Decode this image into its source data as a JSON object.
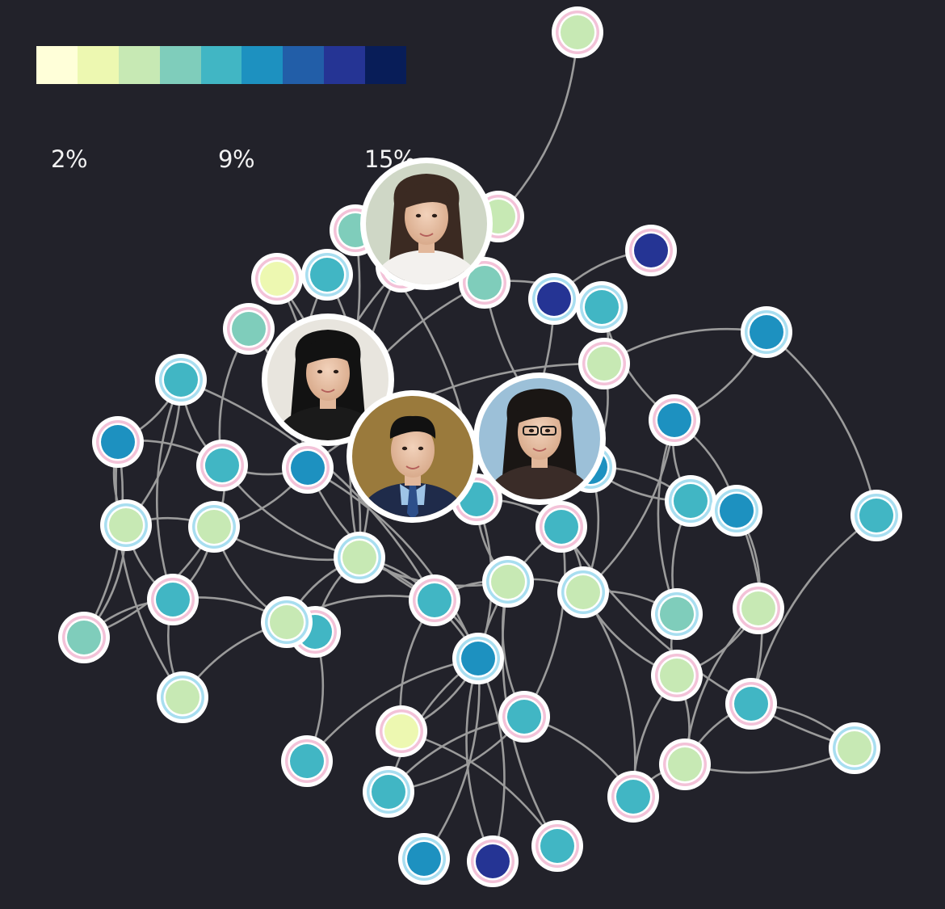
{
  "legend": {
    "colors": [
      "#ffffd9",
      "#edf8b1",
      "#c7e9b4",
      "#7fcdbb",
      "#41b6c4",
      "#1d91c0",
      "#225ea8",
      "#253494",
      "#081d58"
    ],
    "labels": [
      "2%",
      "9%",
      "15%"
    ]
  },
  "ring_colors": {
    "pink": "#f3c2d8",
    "blue": "#a8def0"
  },
  "edge_color": "#9b9b9b",
  "profiles": [
    {
      "name": "profile-woman-long-hair"
    },
    {
      "name": "profile-woman-bangs"
    },
    {
      "name": "profile-man-suit"
    },
    {
      "name": "profile-woman-glasses"
    }
  ]
}
